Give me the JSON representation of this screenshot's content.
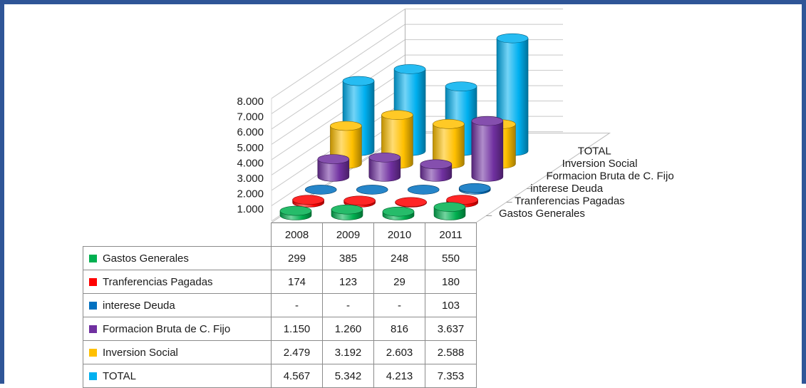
{
  "chart_data": {
    "type": "bar",
    "style": "3d-cylinder",
    "categories": [
      "2008",
      "2009",
      "2010",
      "2011"
    ],
    "y_ticks": [
      "8.000",
      "7.000",
      "6.000",
      "5.000",
      "4.000",
      "3.000",
      "2.000",
      "1.000",
      "-"
    ],
    "ylim": [
      0,
      8000
    ],
    "series": [
      {
        "name": "Gastos Generales",
        "color": "#00b050",
        "values": [
          299,
          385,
          248,
          550
        ],
        "labels": [
          "299",
          "385",
          "248",
          "550"
        ]
      },
      {
        "name": "Tranferencias Pagadas",
        "color": "#ff0000",
        "values": [
          174,
          123,
          29,
          180
        ],
        "labels": [
          "174",
          "123",
          "29",
          "180"
        ]
      },
      {
        "name": "interese Deuda",
        "color": "#0070c0",
        "values": [
          0,
          0,
          0,
          103
        ],
        "labels": [
          "-",
          "-",
          "-",
          "103"
        ]
      },
      {
        "name": "Formacion Bruta de C. Fijo",
        "color": "#7030a0",
        "values": [
          1150,
          1260,
          816,
          3637
        ],
        "labels": [
          "1.150",
          "1.260",
          "816",
          "3.637"
        ]
      },
      {
        "name": "Inversion Social",
        "color": "#ffc000",
        "values": [
          2479,
          3192,
          2603,
          2588
        ],
        "labels": [
          "2.479",
          "3.192",
          "2.603",
          "2.588"
        ]
      },
      {
        "name": "TOTAL",
        "color": "#00b0f0",
        "values": [
          4567,
          5342,
          4213,
          7353
        ],
        "labels": [
          "4.567",
          "5.342",
          "4.213",
          "7.353"
        ]
      }
    ],
    "grid": true,
    "legend": "data-table-below"
  }
}
